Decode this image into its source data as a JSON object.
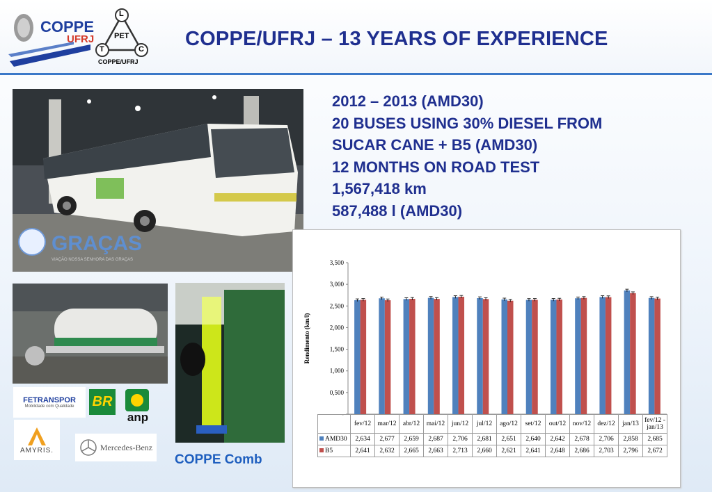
{
  "header": {
    "title": "COPPE/UFRJ – 13 YEARS OF EXPERIENCE",
    "logo_coppe_text": "COPPE",
    "logo_ufrj_text": "UFRJ",
    "logo_pet_letters": {
      "top": "L",
      "left": "T",
      "right": "C",
      "center": "PET"
    },
    "logo_pet_caption": "COPPE/UFRJ"
  },
  "info_lines": [
    "2012 – 2013 (AMD30)",
    "20 BUSES USING 30% DIESEL FROM",
    "SUCAR CANE + B5 (AMD30)",
    "12 MONTHS ON ROAD TEST",
    "1,567,418  km",
    "587,488 l (AMD30)"
  ],
  "bus_photo": {
    "watermark": "GRAÇAS",
    "watermark_sub": "VIAÇÃO NOSSA SENHORA DAS GRAÇAS"
  },
  "sponsors": {
    "fetranspor": "FETRANSPOR",
    "fetranspor_sub": "Mobilidade com Qualidade",
    "br": "BR",
    "anp": "anp",
    "amyris": "AMYRIS.",
    "mercedes": "Mercedes-Benz"
  },
  "caption": "COPPE Comb",
  "colors": {
    "amd30": "#4f81bd",
    "b5": "#c0504d",
    "title": "#1f2f8f"
  },
  "chart_data": {
    "type": "bar",
    "title": "",
    "xlabel": "",
    "ylabel": "Rendimento (km/l)",
    "ylim": [
      0,
      3500
    ],
    "yticks": [
      "-",
      "0,500",
      "1,000",
      "1,500",
      "2,000",
      "2,500",
      "3,000",
      "3,500"
    ],
    "grid": false,
    "categories": [
      "fev/12",
      "mar/12",
      "abr/12",
      "mai/12",
      "jun/12",
      "jul/12",
      "ago/12",
      "set/12",
      "out/12",
      "nov/12",
      "dez/12",
      "jan/13",
      "fev/12 - jan/13"
    ],
    "series": [
      {
        "name": "AMD30",
        "color": "#4f81bd",
        "values": [
          2.634,
          2.677,
          2.659,
          2.687,
          2.706,
          2.681,
          2.651,
          2.64,
          2.642,
          2.678,
          2.706,
          2.858,
          2.685
        ],
        "labels": [
          "2,634",
          "2,677",
          "2,659",
          "2,687",
          "2,706",
          "2,681",
          "2,651",
          "2,640",
          "2,642",
          "2,678",
          "2,706",
          "2,858",
          "2,685"
        ]
      },
      {
        "name": "B5",
        "color": "#c0504d",
        "values": [
          2.641,
          2.632,
          2.665,
          2.663,
          2.713,
          2.66,
          2.621,
          2.641,
          2.648,
          2.686,
          2.703,
          2.796,
          2.672
        ],
        "labels": [
          "2,641",
          "2,632",
          "2,665",
          "2,663",
          "2,713",
          "2,660",
          "2,621",
          "2,641",
          "2,648",
          "2,686",
          "2,703",
          "2,796",
          "2,672"
        ]
      }
    ]
  }
}
